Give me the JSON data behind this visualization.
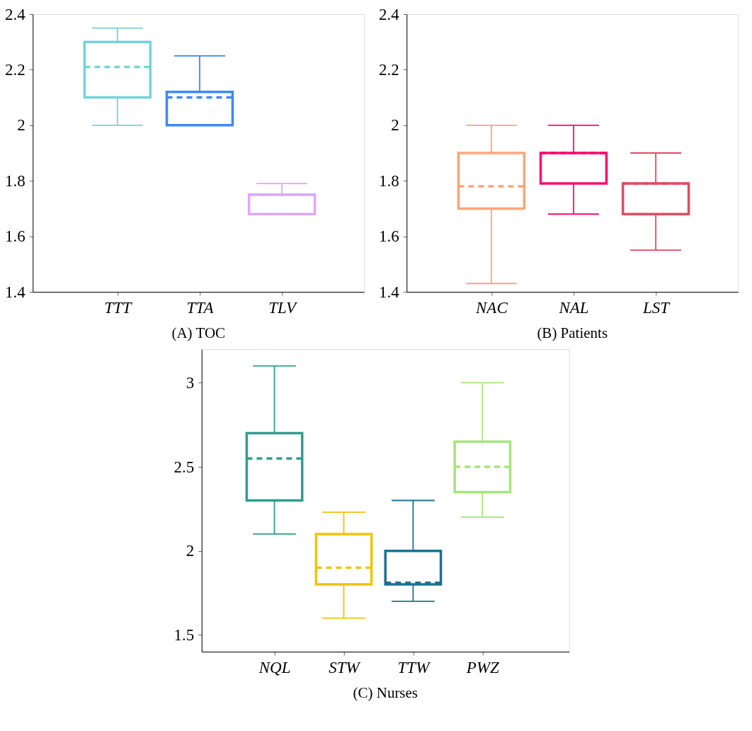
{
  "chart_data": [
    {
      "type": "box",
      "title": "(A) TOC",
      "categories": [
        "TTT",
        "TTA",
        "TLV"
      ],
      "colors": [
        "#74d3dc",
        "#3f87f5",
        "#dca8fa"
      ],
      "boxes": [
        {
          "low": 2.0,
          "q1": 2.1,
          "median": 2.21,
          "q3": 2.3,
          "high": 2.35
        },
        {
          "low": 2.0,
          "q1": 2.0,
          "median": 2.1,
          "q3": 2.12,
          "high": 2.25
        },
        {
          "low": 1.68,
          "q1": 1.68,
          "median": 1.75,
          "q3": 1.75,
          "high": 1.79
        }
      ],
      "ylim": [
        1.4,
        2.4
      ],
      "yticks": [
        1.4,
        1.6,
        1.8,
        2,
        2.2,
        2.4
      ],
      "grid": false
    },
    {
      "type": "box",
      "title": "(B) Patients",
      "categories": [
        "NAC",
        "NAL",
        "LST"
      ],
      "colors": [
        "#fca57a",
        "#ff0a6e",
        "#e24a62"
      ],
      "boxes": [
        {
          "low": 1.43,
          "q1": 1.7,
          "median": 1.78,
          "q3": 1.9,
          "high": 2.0
        },
        {
          "low": 1.68,
          "q1": 1.79,
          "median": 1.9,
          "q3": 1.9,
          "high": 2.0
        },
        {
          "low": 1.55,
          "q1": 1.68,
          "median": 1.79,
          "q3": 1.79,
          "high": 1.9
        }
      ],
      "ylim": [
        1.4,
        2.4
      ],
      "yticks": [
        1.4,
        1.6,
        1.8,
        2,
        2.2,
        2.4
      ],
      "grid": false
    },
    {
      "type": "box",
      "title": "(C) Nurses",
      "categories": [
        "NQL",
        "STW",
        "TTW",
        "PWZ"
      ],
      "colors": [
        "#2e9e8e",
        "#f2c20a",
        "#1f6f94",
        "#a6e57a"
      ],
      "boxes": [
        {
          "low": 2.1,
          "q1": 2.3,
          "median": 2.55,
          "q3": 2.7,
          "high": 3.1
        },
        {
          "low": 1.6,
          "q1": 1.8,
          "median": 1.9,
          "q3": 2.1,
          "high": 2.23
        },
        {
          "low": 1.7,
          "q1": 1.8,
          "median": 1.81,
          "q3": 2.0,
          "high": 2.3
        },
        {
          "low": 2.2,
          "q1": 2.35,
          "median": 2.5,
          "q3": 2.65,
          "high": 3.0
        }
      ],
      "ylim": [
        1.4,
        3.2
      ],
      "yticks": [
        1.5,
        2,
        2.5,
        3
      ],
      "grid": false
    }
  ]
}
